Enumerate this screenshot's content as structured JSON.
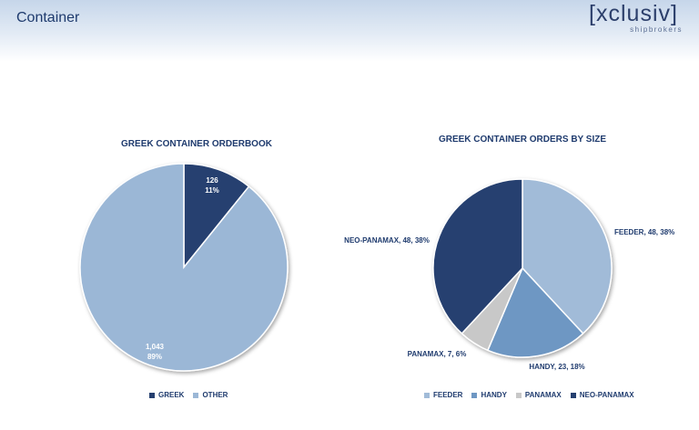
{
  "header": {
    "title": "Container"
  },
  "logo": {
    "text": "[xclusiv]",
    "subtitle": "shipbrokers"
  },
  "chart_data": [
    {
      "type": "pie",
      "title": "GREEK CONTAINER ORDERBOOK",
      "legend_position": "bottom",
      "slices": [
        {
          "name": "GREEK",
          "value": 126,
          "percent": "11%",
          "color": "#253f6f",
          "label_value": "126",
          "label_percent": "11%"
        },
        {
          "name": "OTHER",
          "value": 1043,
          "percent": "89%",
          "color": "#9bb7d6",
          "label_value": "1,043",
          "label_percent": "89%"
        }
      ]
    },
    {
      "type": "pie",
      "title": "GREEK CONTAINER ORDERS BY SIZE",
      "legend_position": "bottom",
      "slices": [
        {
          "name": "FEEDER",
          "value": 48,
          "percent": "38%",
          "color": "#a1bbd8",
          "label": "FEEDER, 48, 38%"
        },
        {
          "name": "HANDY",
          "value": 23,
          "percent": "18%",
          "color": "#6e97c3",
          "label": "HANDY, 23, 18%"
        },
        {
          "name": "PANAMAX",
          "value": 7,
          "percent": "6%",
          "color": "#c8c8c8",
          "label": "PANAMAX, 7, 6%"
        },
        {
          "name": "NEO-PANAMAX",
          "value": 48,
          "percent": "38%",
          "color": "#253f6f",
          "label": "NEO-PANAMAX, 48, 38%"
        }
      ]
    }
  ]
}
